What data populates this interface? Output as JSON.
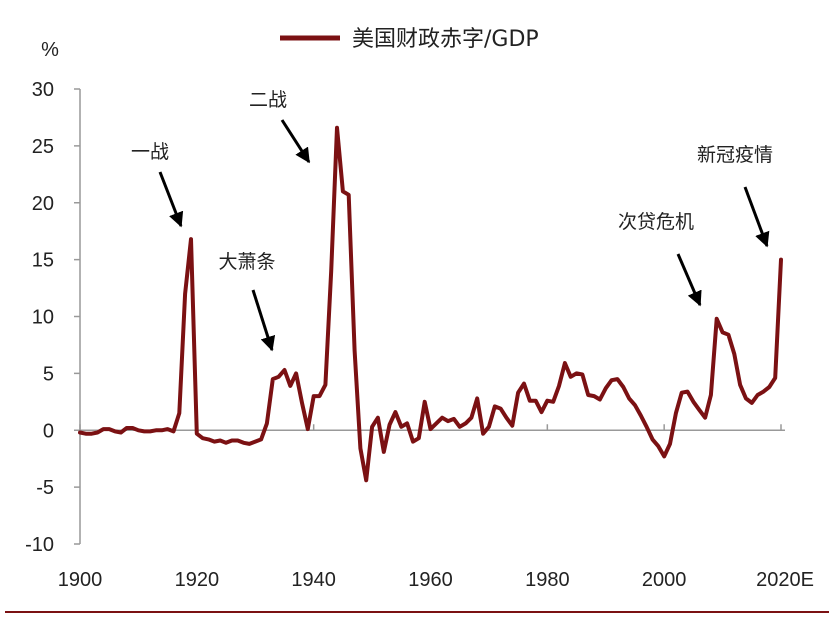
{
  "colors": {
    "series": "#7B1113",
    "axis": "#999999",
    "frame_line": "#7B1113",
    "arrow": "#000000"
  },
  "chart_data": {
    "type": "line",
    "unit_label": "%",
    "legend": [
      {
        "name": "美国财政赤字/GDP"
      }
    ],
    "legend_placement": "top-center",
    "grid": false,
    "xlim": [
      1900,
      2020
    ],
    "ylim": [
      -10,
      30
    ],
    "x_tick_labels": [
      "1900",
      "1920",
      "1940",
      "1960",
      "1980",
      "2000",
      "2020E"
    ],
    "y_tick_labels": [
      "30",
      "25",
      "20",
      "15",
      "10",
      "5",
      "0",
      "-5",
      "-10"
    ],
    "series": [
      {
        "name": "美国财政赤字/GDP",
        "x": [
          1900,
          1901,
          1902,
          1903,
          1904,
          1905,
          1906,
          1907,
          1908,
          1909,
          1910,
          1911,
          1912,
          1913,
          1914,
          1915,
          1916,
          1917,
          1918,
          1919,
          1920,
          1921,
          1922,
          1923,
          1924,
          1925,
          1926,
          1927,
          1928,
          1929,
          1930,
          1931,
          1932,
          1933,
          1934,
          1935,
          1936,
          1937,
          1938,
          1939,
          1940,
          1941,
          1942,
          1943,
          1944,
          1945,
          1946,
          1947,
          1948,
          1949,
          1950,
          1951,
          1952,
          1953,
          1954,
          1955,
          1956,
          1957,
          1958,
          1959,
          1960,
          1961,
          1962,
          1963,
          1964,
          1965,
          1966,
          1967,
          1968,
          1969,
          1970,
          1971,
          1972,
          1973,
          1974,
          1975,
          1976,
          1977,
          1978,
          1979,
          1980,
          1981,
          1982,
          1983,
          1984,
          1985,
          1986,
          1987,
          1988,
          1989,
          1990,
          1991,
          1992,
          1993,
          1994,
          1995,
          1996,
          1997,
          1998,
          1999,
          2000,
          2001,
          2002,
          2003,
          2004,
          2005,
          2006,
          2007,
          2008,
          2009,
          2010,
          2011,
          2012,
          2013,
          2014,
          2015,
          2016,
          2017,
          2018,
          2019,
          2020
        ],
        "values": [
          -0.2,
          -0.3,
          -0.3,
          -0.2,
          0.1,
          0.1,
          -0.1,
          -0.2,
          0.2,
          0.2,
          0.0,
          -0.1,
          -0.1,
          0.0,
          0.0,
          0.1,
          -0.1,
          1.5,
          12.0,
          16.8,
          -0.3,
          -0.7,
          -0.8,
          -1.0,
          -0.9,
          -1.1,
          -0.9,
          -0.9,
          -1.1,
          -1.2,
          -1.0,
          -0.8,
          0.6,
          4.5,
          4.7,
          5.3,
          3.9,
          5.0,
          2.4,
          0.1,
          3.0,
          3.0,
          4.0,
          14.0,
          26.6,
          21.0,
          20.7,
          7.0,
          -1.6,
          -4.4,
          0.3,
          1.1,
          -1.9,
          0.5,
          1.6,
          0.3,
          0.6,
          -1.0,
          -0.7,
          2.5,
          0.1,
          0.6,
          1.1,
          0.8,
          1.0,
          0.3,
          0.6,
          1.1,
          2.8,
          -0.3,
          0.3,
          2.1,
          1.9,
          1.1,
          0.4,
          3.3,
          4.1,
          2.6,
          2.6,
          1.6,
          2.6,
          2.5,
          3.9,
          5.9,
          4.7,
          5.0,
          4.9,
          3.1,
          3.0,
          2.7,
          3.7,
          4.4,
          4.5,
          3.8,
          2.8,
          2.2,
          1.3,
          0.3,
          -0.8,
          -1.4,
          -2.3,
          -1.2,
          1.5,
          3.3,
          3.4,
          2.5,
          1.8,
          1.1,
          3.1,
          9.8,
          8.6,
          8.4,
          6.7,
          4.0,
          2.8,
          2.4,
          3.1,
          3.4,
          3.8,
          4.6,
          15.0
        ]
      }
    ],
    "annotations": [
      {
        "label": "一战"
      },
      {
        "label": "大萧条"
      },
      {
        "label": "二战"
      },
      {
        "label": "次贷危机"
      },
      {
        "label": "新冠疫情"
      }
    ]
  }
}
